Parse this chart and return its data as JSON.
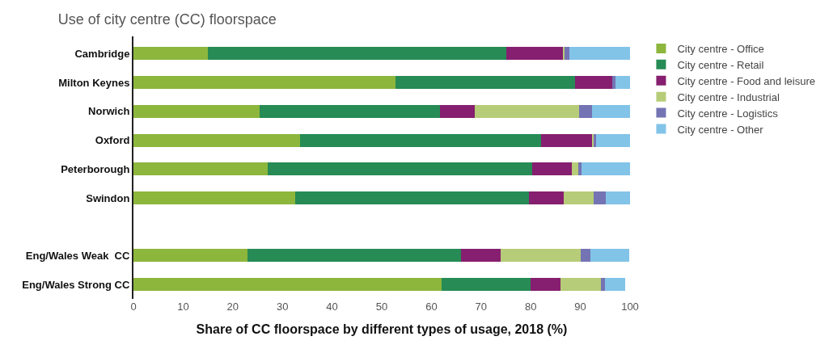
{
  "chart_data": {
    "type": "bar",
    "orientation": "horizontal",
    "stacked": true,
    "title": "Use of city centre (CC) floorspace",
    "xlabel": "Share of CC floorspace by different types of usage, 2018 (%)",
    "categories": [
      "Cambridge",
      "Milton Keynes",
      "Norwich",
      "Oxford",
      "Peterborough",
      "Swindon",
      null,
      "Eng/Wales Weak  CC",
      "Eng/Wales Strong CC"
    ],
    "series": [
      {
        "name": "City centre - Office",
        "color": "#8db63c",
        "values": [
          15,
          52.7,
          25.4,
          33.6,
          27,
          32.5,
          null,
          23,
          62
        ]
      },
      {
        "name": "City centre - Retail",
        "color": "#268b55",
        "values": [
          60,
          36.2,
          36.3,
          48.5,
          53.3,
          47.2,
          null,
          43,
          18
        ]
      },
      {
        "name": "City centre - Food and leisure",
        "color": "#861f6f",
        "values": [
          11.5,
          7.5,
          7,
          10.4,
          8,
          6.9,
          null,
          8,
          6
        ]
      },
      {
        "name": "City centre - Industrial",
        "color": "#b7cc78",
        "values": [
          0.3,
          0,
          21,
          0.3,
          1.2,
          6,
          null,
          16.1,
          8.1
        ]
      },
      {
        "name": "City centre - Logistics",
        "color": "#7474b4",
        "values": [
          1,
          0.7,
          2.7,
          0.3,
          0.7,
          2.5,
          null,
          1.9,
          0.9
        ]
      },
      {
        "name": "City centre - Other",
        "color": "#82c3e8",
        "values": [
          12.2,
          2.9,
          7.6,
          6.9,
          9.8,
          4.9,
          null,
          7.9,
          4.1
        ]
      }
    ],
    "xlim": [
      0,
      100
    ],
    "xticks": [
      0,
      10,
      20,
      30,
      40,
      50,
      60,
      70,
      80,
      90,
      100
    ],
    "legend": "right"
  }
}
